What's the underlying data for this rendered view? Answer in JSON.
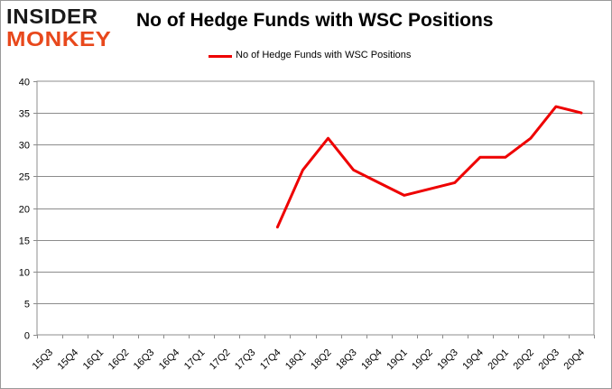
{
  "logo": {
    "line1": "INSIDER",
    "line2": "MONKEY"
  },
  "chart_data": {
    "type": "line",
    "title": "No of Hedge Funds with WSC Positions",
    "xlabel": "",
    "ylabel": "",
    "categories": [
      "15Q3",
      "15Q4",
      "16Q1",
      "16Q2",
      "16Q3",
      "16Q4",
      "17Q1",
      "17Q2",
      "17Q3",
      "17Q4",
      "18Q1",
      "18Q2",
      "18Q3",
      "18Q4",
      "19Q1",
      "19Q2",
      "19Q3",
      "19Q4",
      "20Q1",
      "20Q2",
      "20Q3",
      "20Q4"
    ],
    "series": [
      {
        "name": "No of Hedge Funds with WSC Positions",
        "color": "#ee0000",
        "values": [
          null,
          null,
          null,
          null,
          null,
          null,
          null,
          null,
          null,
          17,
          26,
          31,
          26,
          24,
          22,
          23,
          24,
          28,
          28,
          31,
          36,
          35
        ]
      }
    ],
    "ylim": [
      0,
      40
    ],
    "yticks": [
      0,
      5,
      10,
      15,
      20,
      25,
      30,
      35,
      40
    ],
    "grid": true,
    "legend": "top-center"
  }
}
